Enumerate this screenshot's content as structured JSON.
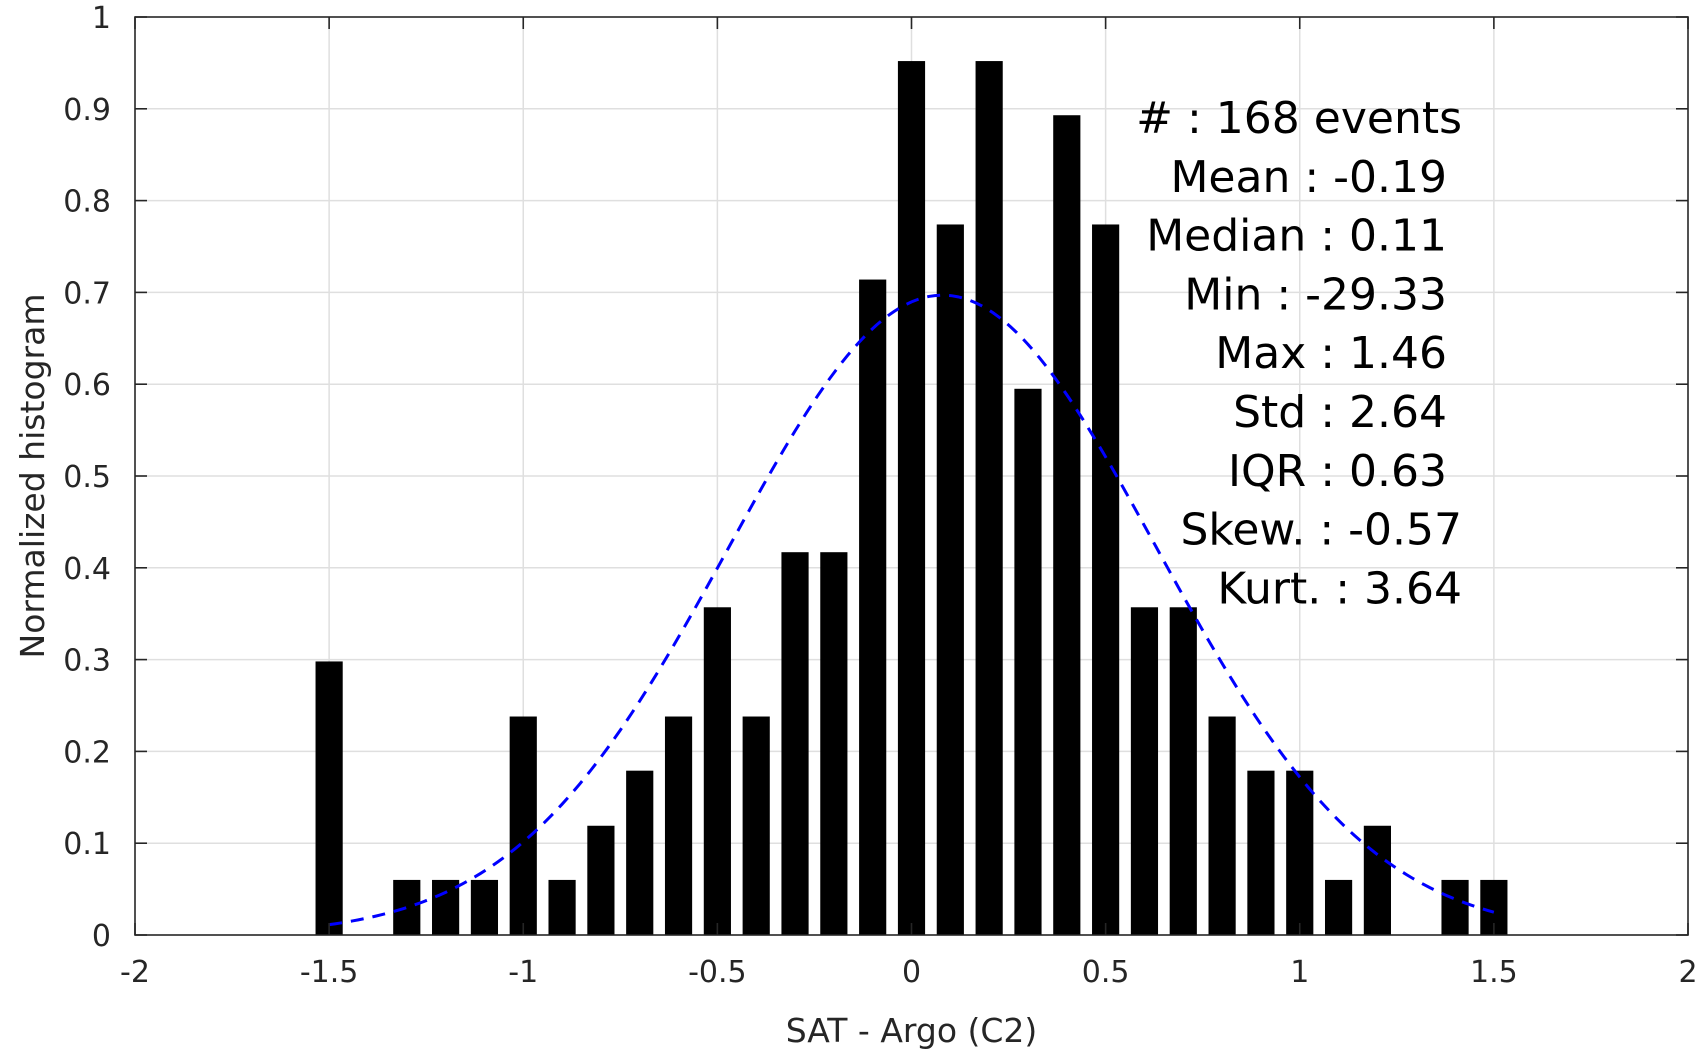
{
  "chart_data": {
    "type": "bar",
    "xlabel": "SAT - Argo (C2)",
    "ylabel": "Normalized histogram",
    "xlim": [
      -2,
      2
    ],
    "ylim": [
      0,
      1
    ],
    "x_ticks": [
      -2,
      -1.5,
      -1,
      -0.5,
      0,
      0.5,
      1,
      1.5,
      2
    ],
    "x_tick_labels": [
      "-2",
      "-1.5",
      "-1",
      "-0.5",
      "0",
      "0.5",
      "1",
      "1.5",
      "2"
    ],
    "y_ticks": [
      0,
      0.1,
      0.2,
      0.3,
      0.4,
      0.5,
      0.6,
      0.7,
      0.8,
      0.9,
      1
    ],
    "y_tick_labels": [
      "0",
      "0.1",
      "0.2",
      "0.3",
      "0.4",
      "0.5",
      "0.6",
      "0.7",
      "0.8",
      "0.9",
      "1"
    ],
    "grid": true,
    "bin_width": 0.1,
    "bar_fill_fraction": 0.7,
    "x": [
      -1.5,
      -1.3,
      -1.2,
      -1.1,
      -1.0,
      -0.9,
      -0.8,
      -0.7,
      -0.6,
      -0.5,
      -0.4,
      -0.3,
      -0.2,
      -0.1,
      0.0,
      0.1,
      0.2,
      0.3,
      0.4,
      0.5,
      0.6,
      0.7,
      0.8,
      0.9,
      1.0,
      1.1,
      1.2,
      1.4,
      1.5
    ],
    "values": [
      0.298,
      0.06,
      0.06,
      0.06,
      0.238,
      0.06,
      0.119,
      0.179,
      0.238,
      0.357,
      0.238,
      0.417,
      0.417,
      0.714,
      0.952,
      0.774,
      0.952,
      0.595,
      0.893,
      0.774,
      0.357,
      0.357,
      0.238,
      0.179,
      0.179,
      0.06,
      0.119,
      0.06,
      0.06
    ],
    "bar_color": "#000000",
    "fit_curve": {
      "type": "normal",
      "style": "dashed",
      "color": "#0000ff",
      "x_range": [
        -1.5,
        1.5
      ],
      "mean": 0.08,
      "sigma": 0.55,
      "peak": 0.697
    },
    "annotations": [
      "#  : 168 events",
      "Mean : -0.19",
      "Median : 0.11",
      "Min : -29.33",
      "Max : 1.46",
      "Std : 2.64",
      "IQR : 0.63",
      "Skew. : -0.57",
      "Kurt. : 3.64"
    ]
  }
}
